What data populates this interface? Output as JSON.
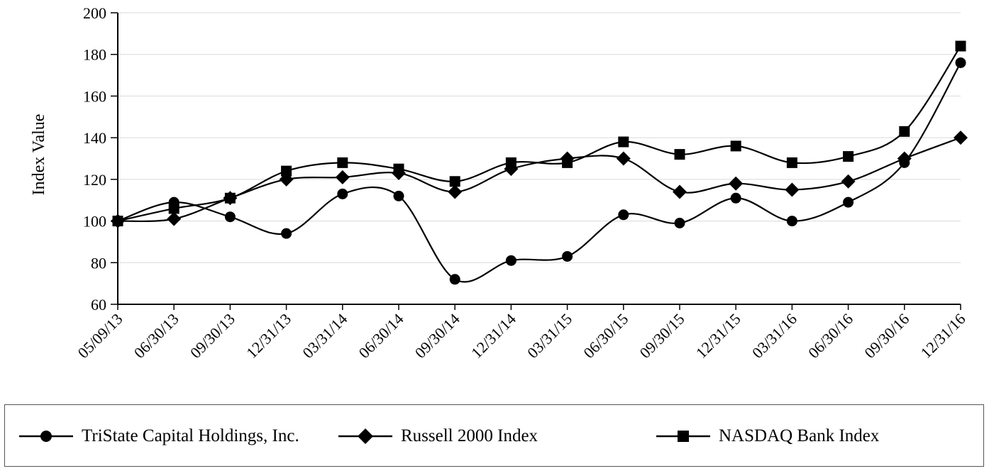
{
  "chart_data": {
    "type": "line",
    "ylabel": "Index Value",
    "xlabel": "",
    "title": "",
    "ylim": [
      60,
      200
    ],
    "yticks": [
      60,
      80,
      100,
      120,
      140,
      160,
      180,
      200
    ],
    "categories": [
      "05/09/13",
      "06/30/13",
      "09/30/13",
      "12/31/13",
      "03/31/14",
      "06/30/14",
      "09/30/14",
      "12/31/14",
      "03/31/15",
      "06/30/15",
      "09/30/15",
      "12/31/15",
      "03/31/16",
      "06/30/16",
      "09/30/16",
      "12/31/16"
    ],
    "grid": true,
    "legend_position": "bottom",
    "series": [
      {
        "name": "TriState Capital Holdings, Inc.",
        "marker": "circle",
        "values": [
          100,
          109,
          102,
          94,
          113,
          112,
          72,
          81,
          83,
          103,
          99,
          111,
          100,
          109,
          128,
          176
        ]
      },
      {
        "name": "Russell 2000 Index",
        "marker": "diamond",
        "values": [
          100,
          101,
          111,
          120,
          121,
          123,
          114,
          125,
          130,
          130,
          114,
          118,
          115,
          119,
          130,
          140
        ]
      },
      {
        "name": "NASDAQ Bank Index",
        "marker": "square",
        "values": [
          100,
          106,
          111,
          124,
          128,
          125,
          119,
          128,
          128,
          138,
          132,
          136,
          128,
          131,
          143,
          184
        ]
      }
    ],
    "colors": {
      "line": "#000000",
      "grid": "#d9d9d9"
    }
  }
}
